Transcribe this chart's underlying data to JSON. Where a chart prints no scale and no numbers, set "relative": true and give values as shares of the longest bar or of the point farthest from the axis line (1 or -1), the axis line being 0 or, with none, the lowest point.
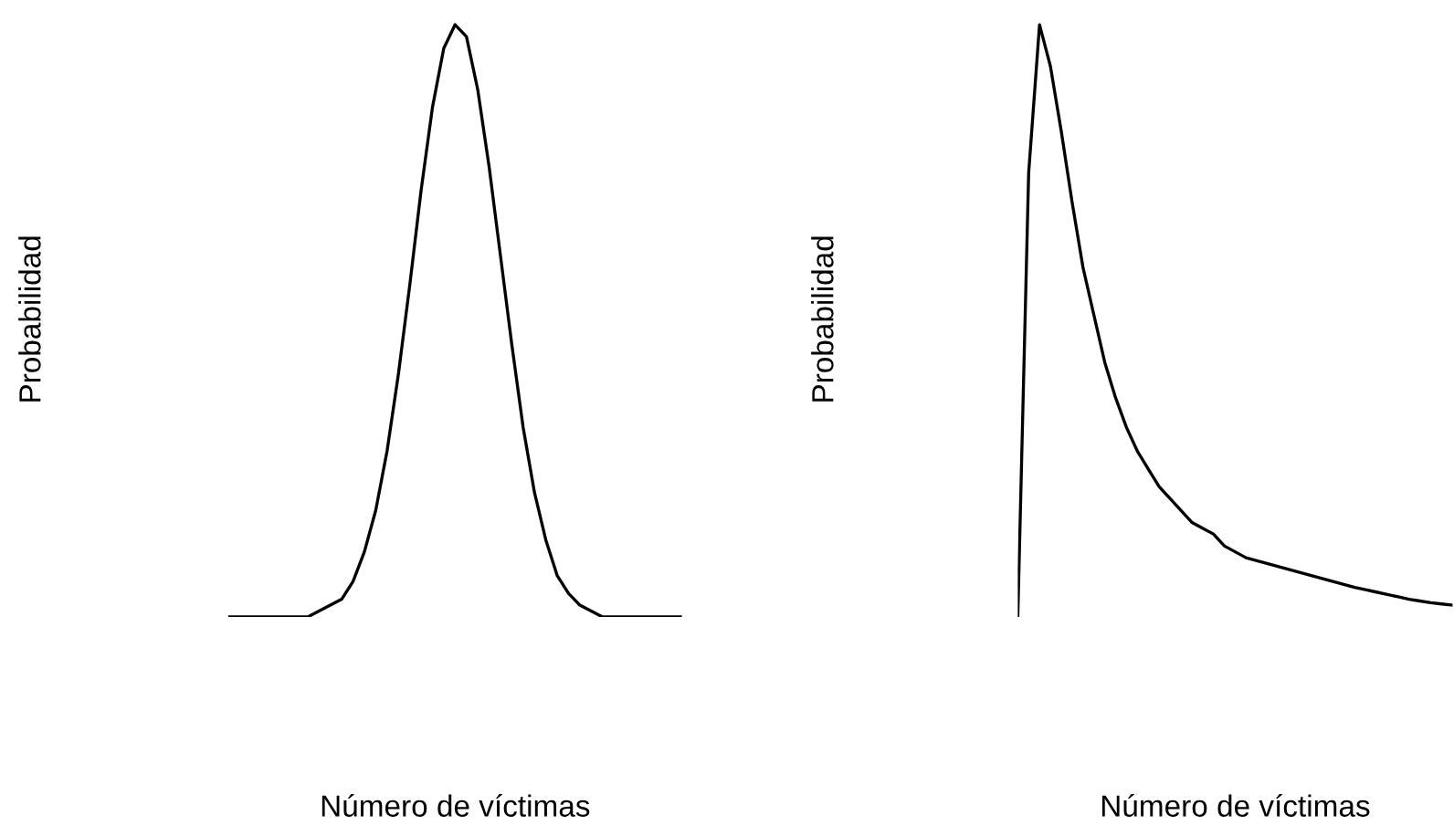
{
  "chart_data": [
    {
      "type": "line",
      "relative": true,
      "xlabel": "Número de víctimas",
      "ylabel": "Probabilidad",
      "tick_labels": false,
      "categories": [
        null,
        null,
        null,
        null,
        null,
        null,
        null,
        null,
        null,
        null,
        null,
        null,
        null,
        null,
        null,
        null,
        null,
        null,
        null,
        null,
        null,
        null,
        null,
        null,
        null,
        null,
        null,
        null,
        null,
        null,
        null,
        null,
        null,
        null,
        null,
        null,
        null,
        null,
        null,
        null,
        null
      ],
      "series": [
        {
          "color": "#000000",
          "values": [
            0,
            0,
            0,
            0,
            0,
            0,
            0,
            0,
            0.01,
            0.02,
            0.03,
            0.06,
            0.11,
            0.18,
            0.28,
            0.41,
            0.56,
            0.72,
            0.86,
            0.96,
            1.0,
            0.98,
            0.89,
            0.76,
            0.61,
            0.46,
            0.32,
            0.21,
            0.13,
            0.07,
            0.04,
            0.02,
            0.01,
            0,
            0,
            0,
            0,
            0,
            0,
            0,
            0
          ]
        }
      ]
    },
    {
      "type": "line",
      "relative": true,
      "xlabel": "Número de víctimas",
      "ylabel": "Probabilidad",
      "tick_labels": false,
      "categories": [
        null,
        null,
        null,
        null,
        null,
        null,
        null,
        null,
        null,
        null,
        null,
        null,
        null,
        null,
        null,
        null,
        null,
        null,
        null,
        null,
        null,
        null,
        null,
        null,
        null,
        null,
        null,
        null,
        null,
        null,
        null,
        null,
        null,
        null,
        null,
        null,
        null,
        null,
        null,
        null,
        null
      ],
      "series": [
        {
          "color": "#000000",
          "values": [
            0,
            0.75,
            1.0,
            0.93,
            0.82,
            0.7,
            0.59,
            0.51,
            0.43,
            0.37,
            0.32,
            0.28,
            0.25,
            0.22,
            0.2,
            0.18,
            0.16,
            0.15,
            0.14,
            0.12,
            0.11,
            0.1,
            0.095,
            0.09,
            0.085,
            0.08,
            0.075,
            0.07,
            0.065,
            0.06,
            0.055,
            0.05,
            0.046,
            0.042,
            0.038,
            0.034,
            0.03,
            0.027,
            0.024,
            0.022,
            0.02
          ]
        }
      ]
    }
  ]
}
